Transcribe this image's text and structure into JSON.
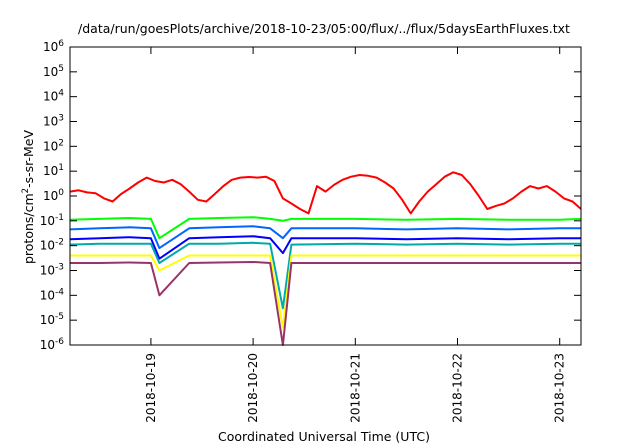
{
  "chart_data": {
    "type": "line",
    "title": "/data/run/goesPlots/archive/2018-10-23/05:00/flux/../flux/5daysEarthFluxes.txt",
    "xlabel": "Coordinated Universal Time (UTC)",
    "ylabel": {
      "prefix": "protons/cm",
      "superscript": "2",
      "suffix": "-s-sr-MeV"
    },
    "y_scale": "log",
    "ylim": [
      1e-06,
      1000000.0
    ],
    "y_ticks": [
      {
        "base": "10",
        "exp": "6",
        "value": 1000000.0
      },
      {
        "base": "10",
        "exp": "5",
        "value": 100000.0
      },
      {
        "base": "10",
        "exp": "4",
        "value": 10000.0
      },
      {
        "base": "10",
        "exp": "3",
        "value": 1000.0
      },
      {
        "base": "10",
        "exp": "2",
        "value": 100.0
      },
      {
        "base": "10",
        "exp": "1",
        "value": 10.0
      },
      {
        "base": "10",
        "exp": "0",
        "value": 1
      },
      {
        "base": "10",
        "exp": "-1",
        "value": 0.1
      },
      {
        "base": "10",
        "exp": "-2",
        "value": 0.01
      },
      {
        "base": "10",
        "exp": "-3",
        "value": 0.001
      },
      {
        "base": "10",
        "exp": "-4",
        "value": 0.0001
      },
      {
        "base": "10",
        "exp": "-5",
        "value": 1e-05
      },
      {
        "base": "10",
        "exp": "-6",
        "value": 1e-06
      }
    ],
    "xlim": [
      "2018-10-18 05:00",
      "2018-10-23 05:00"
    ],
    "x_ticks": [
      "2018-10-19",
      "2018-10-20",
      "2018-10-21",
      "2018-10-22",
      "2018-10-23"
    ],
    "grid": false,
    "legend": "none",
    "series": [
      {
        "color": "#ff0000",
        "x": [
          "2018-10-18 05:00",
          "2018-10-18 07:00",
          "2018-10-18 09:00",
          "2018-10-18 11:00",
          "2018-10-18 13:00",
          "2018-10-18 15:00",
          "2018-10-18 17:00",
          "2018-10-18 19:00",
          "2018-10-18 21:00",
          "2018-10-18 23:00",
          "2018-10-19 01:00",
          "2018-10-19 03:00",
          "2018-10-19 05:00",
          "2018-10-19 07:00",
          "2018-10-19 09:00",
          "2018-10-19 11:00",
          "2018-10-19 13:00",
          "2018-10-19 15:00",
          "2018-10-19 17:00",
          "2018-10-19 19:00",
          "2018-10-19 21:00",
          "2018-10-19 23:00",
          "2018-10-20 01:00",
          "2018-10-20 03:00",
          "2018-10-20 05:00",
          "2018-10-20 07:00",
          "2018-10-20 09:00",
          "2018-10-20 11:00",
          "2018-10-20 13:00",
          "2018-10-20 15:00",
          "2018-10-20 17:00",
          "2018-10-20 19:00",
          "2018-10-20 21:00",
          "2018-10-20 23:00",
          "2018-10-21 01:00",
          "2018-10-21 03:00",
          "2018-10-21 05:00",
          "2018-10-21 07:00",
          "2018-10-21 09:00",
          "2018-10-21 11:00",
          "2018-10-21 13:00",
          "2018-10-21 15:00",
          "2018-10-21 17:00",
          "2018-10-21 19:00",
          "2018-10-21 21:00",
          "2018-10-21 23:00",
          "2018-10-22 01:00",
          "2018-10-22 03:00",
          "2018-10-22 05:00",
          "2018-10-22 07:00",
          "2018-10-22 09:00",
          "2018-10-22 11:00",
          "2018-10-22 13:00",
          "2018-10-22 15:00",
          "2018-10-22 17:00",
          "2018-10-22 19:00",
          "2018-10-22 21:00",
          "2018-10-22 23:00",
          "2018-10-23 01:00",
          "2018-10-23 03:00",
          "2018-10-23 05:00"
        ],
        "values": [
          1.5,
          1.7,
          1.4,
          1.3,
          0.8,
          0.6,
          1.2,
          2.0,
          3.5,
          5.5,
          4.0,
          3.5,
          4.5,
          3.0,
          1.5,
          0.7,
          0.6,
          1.2,
          2.5,
          4.5,
          5.5,
          5.8,
          5.5,
          6.0,
          4.0,
          0.8,
          0.5,
          0.3,
          0.2,
          2.5,
          1.5,
          2.8,
          4.5,
          6.0,
          7.0,
          6.5,
          5.5,
          3.5,
          2.0,
          0.7,
          0.2,
          0.6,
          1.5,
          3.0,
          6.0,
          9.0,
          7.0,
          3.0,
          1.0,
          0.3,
          0.4,
          0.5,
          0.8,
          1.5,
          2.5,
          2.0,
          2.5,
          1.5,
          0.8,
          0.6,
          0.3
        ]
      },
      {
        "color": "#00ff00",
        "x": [
          "2018-10-18 05:00",
          "2018-10-18 12:00",
          "2018-10-18 19:00",
          "2018-10-19 00:00",
          "2018-10-19 02:00",
          "2018-10-19 09:00",
          "2018-10-19 16:00",
          "2018-10-20 00:00",
          "2018-10-20 04:00",
          "2018-10-20 07:00",
          "2018-10-20 09:00",
          "2018-10-21 00:00",
          "2018-10-21 12:00",
          "2018-10-22 00:00",
          "2018-10-22 12:00",
          "2018-10-23 00:00",
          "2018-10-23 05:00"
        ],
        "values": [
          0.11,
          0.12,
          0.13,
          0.12,
          0.02,
          0.12,
          0.13,
          0.14,
          0.12,
          0.1,
          0.12,
          0.12,
          0.11,
          0.12,
          0.11,
          0.11,
          0.12
        ]
      },
      {
        "color": "#0066ff",
        "x": [
          "2018-10-18 05:00",
          "2018-10-18 12:00",
          "2018-10-18 19:00",
          "2018-10-19 00:00",
          "2018-10-19 02:00",
          "2018-10-19 09:00",
          "2018-10-19 16:00",
          "2018-10-20 00:00",
          "2018-10-20 04:00",
          "2018-10-20 07:00",
          "2018-10-20 09:00",
          "2018-10-21 00:00",
          "2018-10-21 12:00",
          "2018-10-22 00:00",
          "2018-10-22 12:00",
          "2018-10-23 00:00",
          "2018-10-23 05:00"
        ],
        "values": [
          0.045,
          0.05,
          0.055,
          0.05,
          0.008,
          0.05,
          0.055,
          0.06,
          0.05,
          0.02,
          0.05,
          0.05,
          0.045,
          0.05,
          0.045,
          0.05,
          0.05
        ]
      },
      {
        "color": "#0000ff",
        "x": [
          "2018-10-18 05:00",
          "2018-10-18 12:00",
          "2018-10-18 19:00",
          "2018-10-19 00:00",
          "2018-10-19 02:00",
          "2018-10-19 09:00",
          "2018-10-19 16:00",
          "2018-10-20 00:00",
          "2018-10-20 04:00",
          "2018-10-20 07:00",
          "2018-10-20 09:00",
          "2018-10-21 00:00",
          "2018-10-21 12:00",
          "2018-10-22 00:00",
          "2018-10-22 12:00",
          "2018-10-23 00:00",
          "2018-10-23 05:00"
        ],
        "values": [
          0.018,
          0.02,
          0.022,
          0.02,
          0.003,
          0.02,
          0.022,
          0.024,
          0.02,
          0.005,
          0.02,
          0.02,
          0.018,
          0.02,
          0.018,
          0.02,
          0.02
        ]
      },
      {
        "color": "#00aaaa",
        "x": [
          "2018-10-18 05:00",
          "2018-10-18 12:00",
          "2018-10-18 19:00",
          "2018-10-19 00:00",
          "2018-10-19 02:00",
          "2018-10-19 09:00",
          "2018-10-19 16:00",
          "2018-10-20 00:00",
          "2018-10-20 04:00",
          "2018-10-20 07:00",
          "2018-10-20 09:00",
          "2018-10-21 00:00",
          "2018-10-21 12:00",
          "2018-10-22 00:00",
          "2018-10-22 12:00",
          "2018-10-23 00:00",
          "2018-10-23 05:00"
        ],
        "values": [
          0.011,
          0.012,
          0.012,
          0.012,
          0.002,
          0.012,
          0.012,
          0.013,
          0.012,
          3e-05,
          0.011,
          0.012,
          0.011,
          0.012,
          0.011,
          0.012,
          0.012
        ]
      },
      {
        "color": "#ffff00",
        "x": [
          "2018-10-18 05:00",
          "2018-10-18 12:00",
          "2018-10-18 19:00",
          "2018-10-19 00:00",
          "2018-10-19 02:00",
          "2018-10-19 09:00",
          "2018-10-19 16:00",
          "2018-10-20 00:00",
          "2018-10-20 04:00",
          "2018-10-20 07:00",
          "2018-10-20 09:00",
          "2018-10-21 00:00",
          "2018-10-21 12:00",
          "2018-10-22 00:00",
          "2018-10-22 12:00",
          "2018-10-23 00:00",
          "2018-10-23 05:00"
        ],
        "values": [
          0.004,
          0.004,
          0.004,
          0.004,
          0.001,
          0.004,
          0.004,
          0.004,
          0.004,
          5e-06,
          0.004,
          0.004,
          0.004,
          0.004,
          0.004,
          0.004,
          0.004
        ]
      },
      {
        "color": "#993366",
        "x": [
          "2018-10-18 05:00",
          "2018-10-18 12:00",
          "2018-10-18 19:00",
          "2018-10-19 00:00",
          "2018-10-19 02:00",
          "2018-10-19 09:00",
          "2018-10-19 16:00",
          "2018-10-20 00:00",
          "2018-10-20 04:00",
          "2018-10-20 07:00",
          "2018-10-20 09:00",
          "2018-10-21 00:00",
          "2018-10-21 12:00",
          "2018-10-22 00:00",
          "2018-10-22 12:00",
          "2018-10-23 00:00",
          "2018-10-23 05:00"
        ],
        "values": [
          0.002,
          0.002,
          0.0021,
          0.002,
          0.0001,
          0.002,
          0.0021,
          0.0022,
          0.002,
          1e-06,
          0.002,
          0.002,
          0.002,
          0.002,
          0.002,
          0.002,
          0.002
        ]
      }
    ]
  }
}
